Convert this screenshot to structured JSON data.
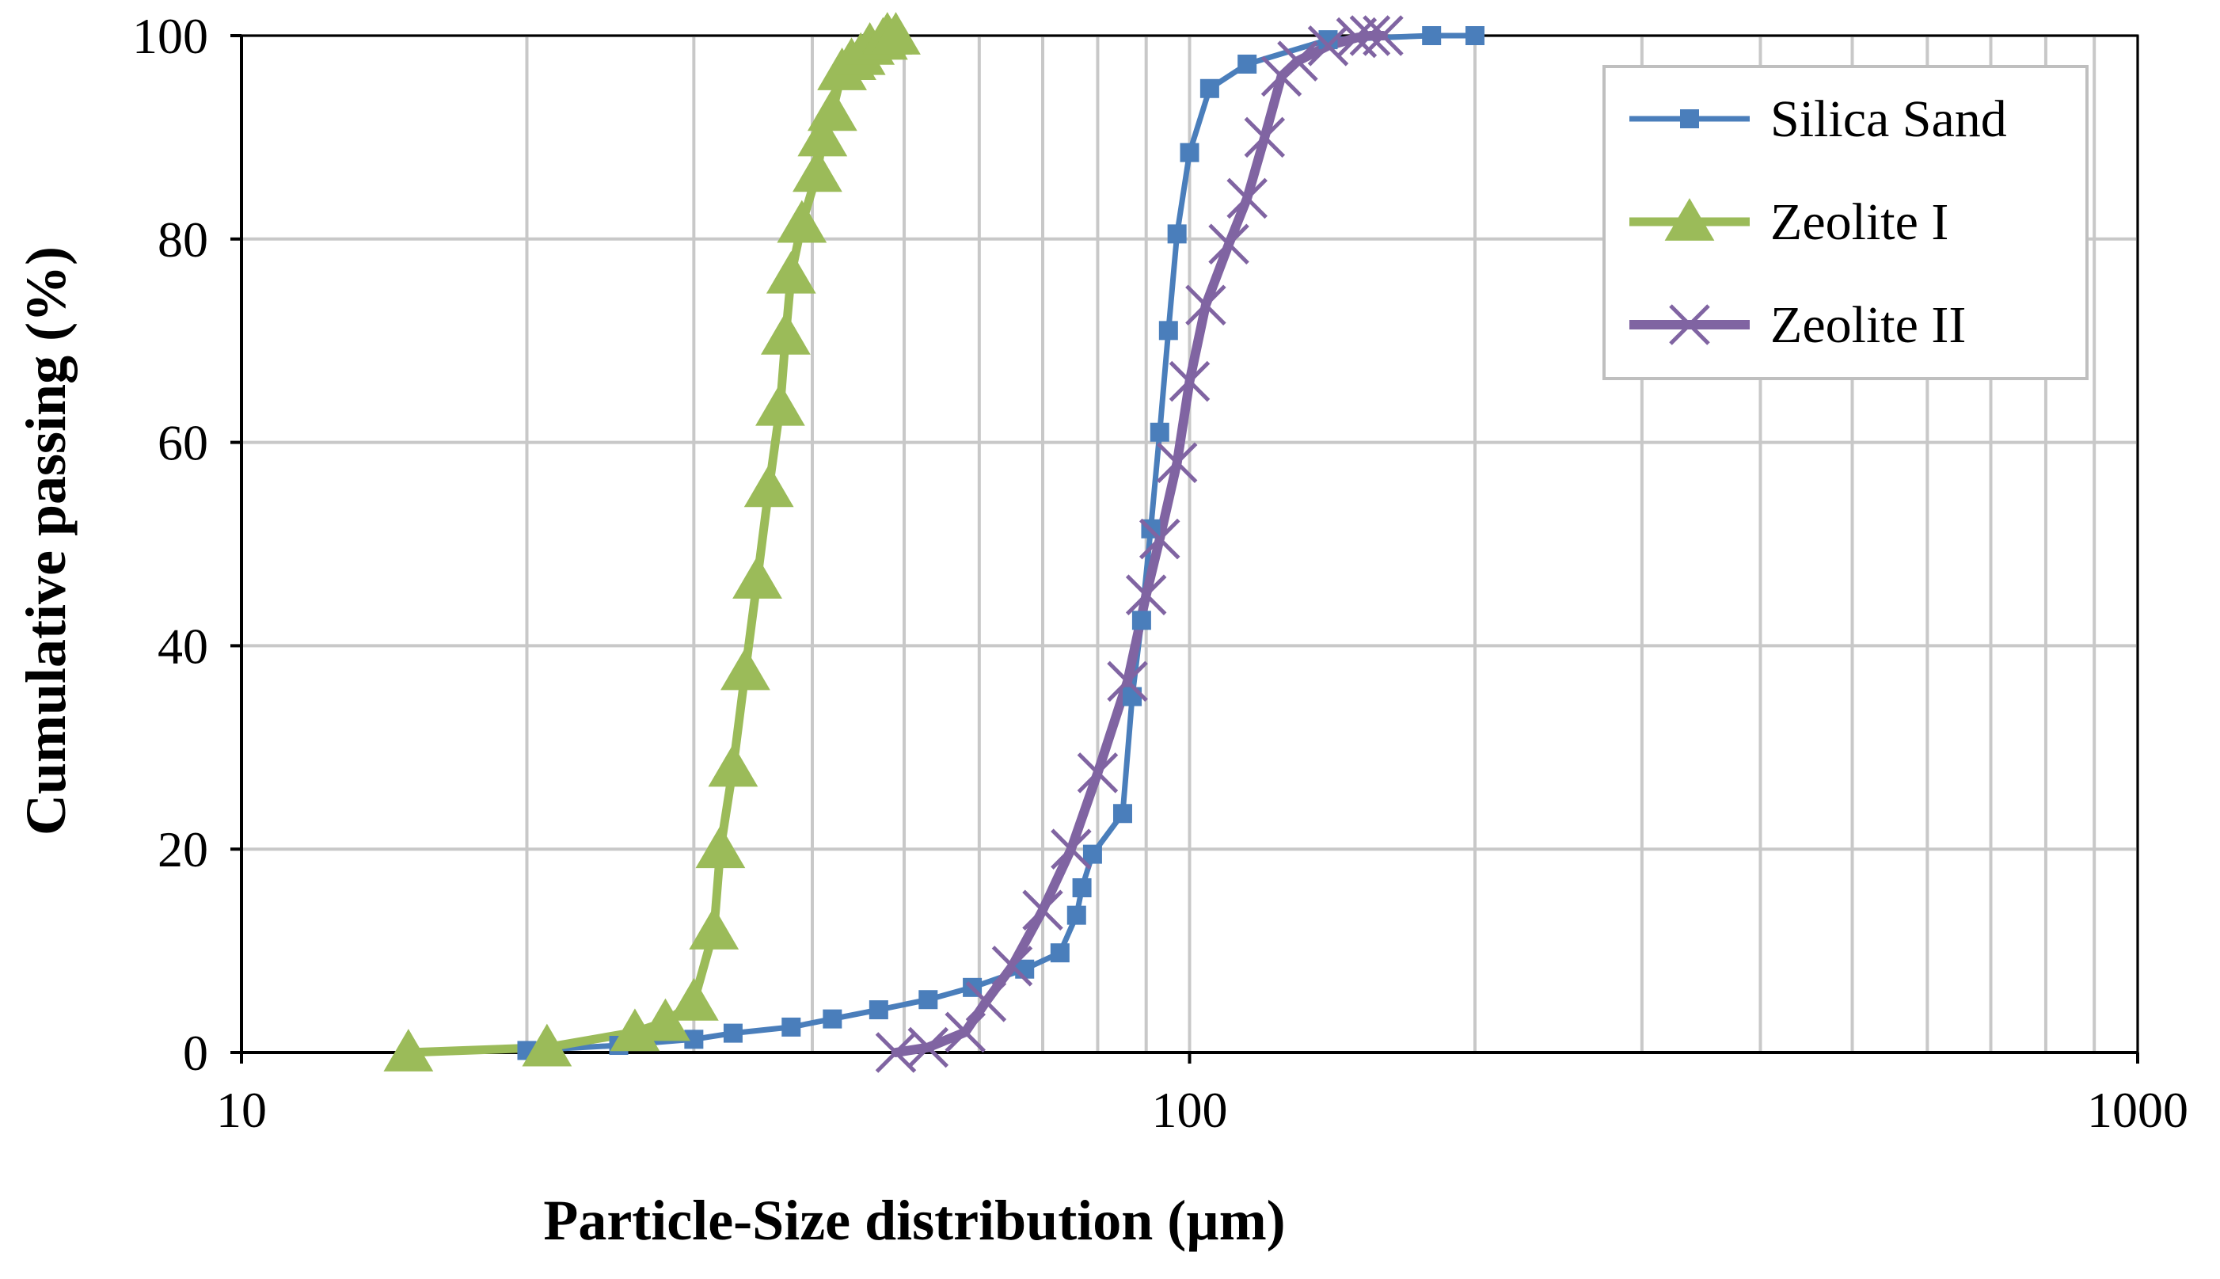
{
  "chart_data": {
    "type": "line",
    "xscale": "log",
    "xlabel": "Particle-Size distribution (µm)",
    "ylabel": "Cumulative passing (%)",
    "xlim": [
      10,
      1000
    ],
    "ylim": [
      0,
      100
    ],
    "xticks": [
      10,
      100,
      1000
    ],
    "xtick_labels": [
      "10",
      "100",
      "1000"
    ],
    "yticks": [
      0,
      20,
      40,
      60,
      80,
      100
    ],
    "ytick_labels": [
      "0",
      "20",
      "40",
      "60",
      "80",
      "100"
    ],
    "grid": true,
    "legend_position": "top-right",
    "series": [
      {
        "name": "Silica Sand",
        "color": "#4a7ebb",
        "marker": "square",
        "x": [
          20,
          25,
          30,
          33,
          38,
          42,
          47,
          53,
          59,
          67,
          73,
          76,
          77,
          79,
          85,
          87,
          89,
          91,
          93,
          95,
          97,
          100,
          105,
          115,
          140,
          180,
          200
        ],
        "y": [
          0.2,
          0.7,
          1.3,
          1.9,
          2.5,
          3.3,
          4.2,
          5.2,
          6.4,
          8.2,
          9.8,
          13.5,
          16.2,
          19.5,
          23.5,
          35,
          42.5,
          51.5,
          61,
          71,
          80.5,
          88.5,
          94.8,
          97.2,
          99.6,
          100,
          100
        ]
      },
      {
        "name": "Zeolite I",
        "color": "#9bbb59",
        "marker": "triangle",
        "x": [
          15,
          21,
          26,
          28,
          30,
          31.5,
          32,
          33,
          34,
          35,
          36,
          37,
          37.5,
          38,
          39,
          40.5,
          41,
          42,
          43,
          44,
          45,
          46,
          47.5,
          48,
          49
        ],
        "y": [
          0,
          0.5,
          2,
          3,
          5,
          12,
          20,
          28,
          37.5,
          46.5,
          55.5,
          63.5,
          70.5,
          76.5,
          81.5,
          86.5,
          90,
          92.5,
          96.5,
          97.5,
          98,
          99,
          99.5,
          100,
          100
        ]
      },
      {
        "name": "Zeolite II",
        "color": "#8064a2",
        "marker": "x",
        "x": [
          49,
          53,
          58,
          61,
          65,
          70,
          75,
          80,
          86,
          90,
          93,
          97,
          100,
          104,
          110,
          115,
          120,
          125,
          130,
          140,
          150,
          155,
          160
        ],
        "y": [
          0,
          0.5,
          2,
          5,
          8.5,
          14,
          20,
          27.5,
          36.5,
          45,
          50.5,
          58,
          66,
          73.5,
          79.5,
          84,
          90,
          96,
          97.5,
          99,
          99.8,
          100,
          100
        ]
      }
    ]
  }
}
